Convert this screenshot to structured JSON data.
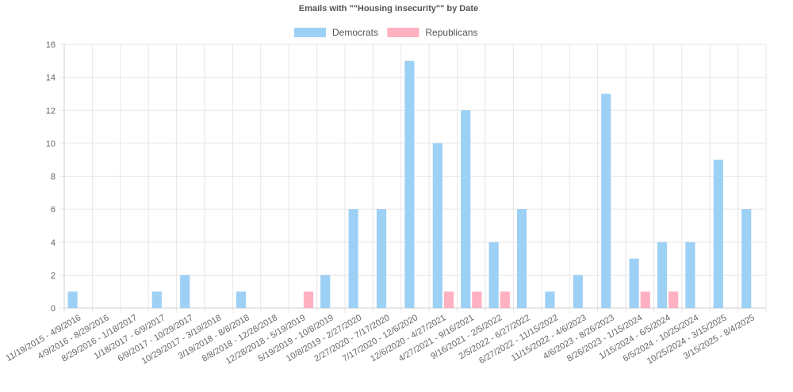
{
  "chart_data": {
    "type": "bar",
    "title": "Emails with \"\"Housing insecurity\"\" by Date",
    "xlabel": "",
    "ylabel": "",
    "ylim": [
      0,
      16
    ],
    "yticks": [
      0,
      2,
      4,
      6,
      8,
      10,
      12,
      14,
      16
    ],
    "grid": true,
    "legend_position": "top-center",
    "categories": [
      "11/19/2015 - 4/9/2016",
      "4/9/2016 - 8/29/2016",
      "8/29/2016 - 1/18/2017",
      "1/18/2017 - 6/9/2017",
      "6/9/2017 - 10/29/2017",
      "10/29/2017 - 3/19/2018",
      "3/19/2018 - 8/8/2018",
      "8/8/2018 - 12/28/2018",
      "12/28/2018 - 5/19/2019",
      "5/19/2019 - 10/8/2019",
      "10/8/2019 - 2/27/2020",
      "2/27/2020 - 7/17/2020",
      "7/17/2020 - 12/6/2020",
      "12/6/2020 - 4/27/2021",
      "4/27/2021 - 9/16/2021",
      "9/16/2021 - 2/5/2022",
      "2/5/2022 - 6/27/2022",
      "6/27/2022 - 11/15/2022",
      "11/15/2022 - 4/6/2023",
      "4/6/2023 - 8/26/2023",
      "8/26/2023 - 1/15/2024",
      "1/15/2024 - 6/5/2024",
      "6/5/2024 - 10/25/2024",
      "10/25/2024 - 3/15/2025",
      "3/15/2025 - 8/4/2025"
    ],
    "series": [
      {
        "name": "Democrats",
        "color": "#9dd0f5",
        "values": [
          1,
          0,
          0,
          1,
          2,
          0,
          1,
          0,
          0,
          2,
          6,
          6,
          15,
          10,
          12,
          4,
          6,
          1,
          2,
          13,
          3,
          4,
          4,
          9,
          6
        ]
      },
      {
        "name": "Republicans",
        "color": "#ffb1c1",
        "values": [
          0,
          0,
          0,
          0,
          0,
          0,
          0,
          0,
          1,
          0,
          0,
          0,
          0,
          1,
          1,
          1,
          0,
          0,
          0,
          0,
          1,
          1,
          0,
          0,
          0
        ]
      }
    ]
  }
}
